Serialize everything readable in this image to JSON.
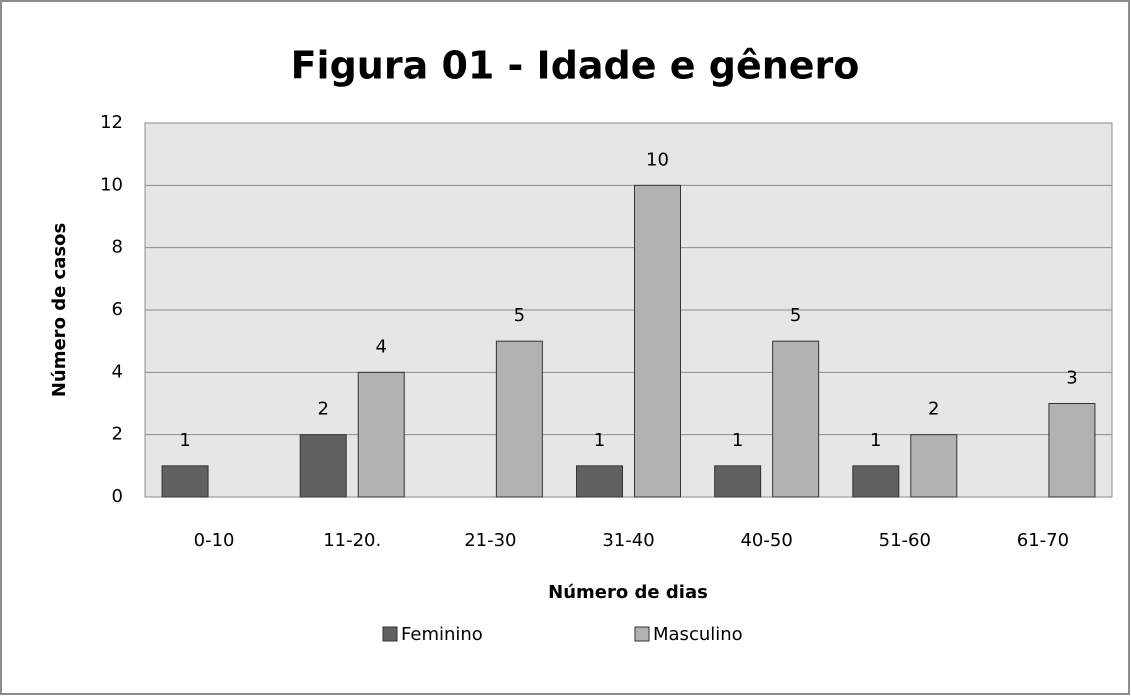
{
  "chart_data": {
    "type": "bar",
    "title": "Figura 01 - Idade e gênero",
    "xlabel": "Número de dias",
    "ylabel": "Número de casos",
    "categories": [
      "0-10",
      "11-20.",
      "21-30",
      "31-40",
      "40-50",
      "51-60",
      "61-70"
    ],
    "series": [
      {
        "name": "Feminino",
        "color": "#606060",
        "values": [
          1,
          2,
          null,
          1,
          1,
          1,
          null
        ]
      },
      {
        "name": "Masculino",
        "color": "#b2b2b2",
        "values": [
          null,
          4,
          5,
          10,
          5,
          2,
          3
        ]
      }
    ],
    "ylim": [
      0,
      12
    ],
    "yticks": [
      0,
      2,
      4,
      6,
      8,
      10,
      12
    ],
    "grid": true,
    "legend": "bottom"
  }
}
